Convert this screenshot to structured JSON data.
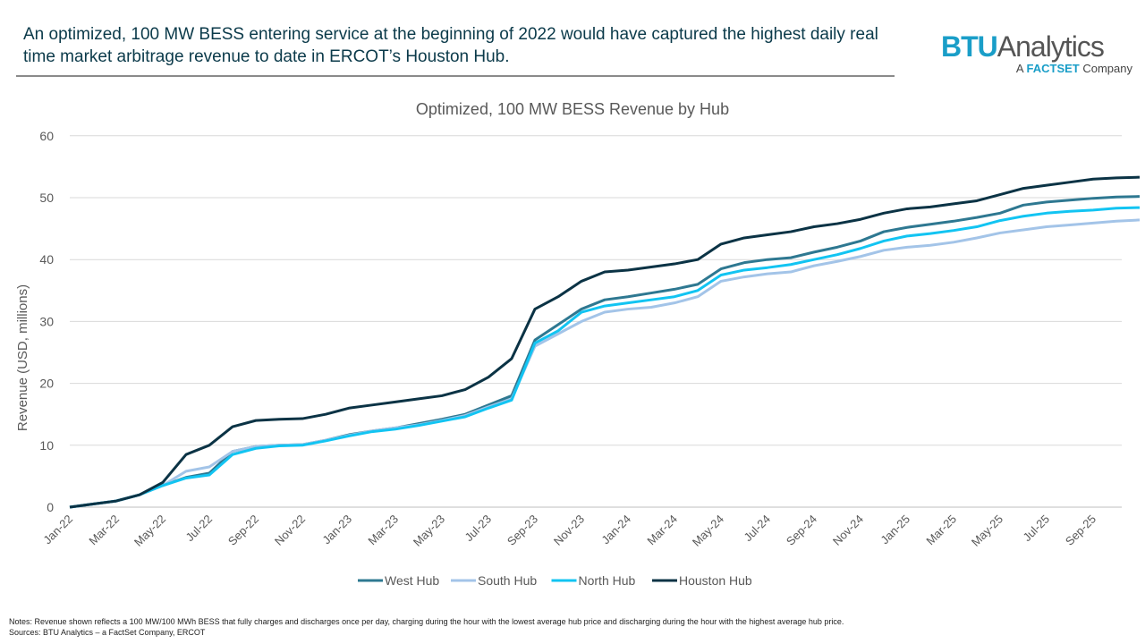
{
  "headline": "An optimized, 100 MW BESS entering service at the beginning of 2022 would have captured the highest daily real time market arbitrage revenue to date in ERCOT’s Houston Hub.",
  "logo": {
    "brand": "BTU",
    "name": "Analytics",
    "prefix": "A",
    "factset": "FACTSET",
    "suffix": "Company"
  },
  "notes": "Notes: Revenue shown reflects a 100 MW/100 MWh BESS that fully charges and discharges once per day, charging during the hour with the lowest average hub price and discharging during the hour with the highest average hub price.",
  "sources": "Sources: BTU Analytics – a FactSet Company, ERCOT",
  "chart_data": {
    "type": "line",
    "title": "Optimized, 100 MW BESS Revenue by Hub",
    "xlabel": "",
    "ylabel": "Revenue (USD, millions)",
    "ylim": [
      0,
      60
    ],
    "yticks": [
      0,
      10,
      20,
      30,
      40,
      50,
      60
    ],
    "xticks": [
      "Jan-22",
      "Mar-22",
      "May-22",
      "Jul-22",
      "Sep-22",
      "Nov-22",
      "Jan-23",
      "Mar-23",
      "May-23",
      "Jul-23",
      "Sep-23",
      "Nov-23",
      "Jan-24",
      "Mar-24",
      "May-24",
      "Jul-24",
      "Sep-24",
      "Nov-24",
      "Jan-25",
      "Mar-25",
      "May-25",
      "Jul-25",
      "Sep-25"
    ],
    "x_unit": "months since Jan-22",
    "x": [
      0,
      1,
      2,
      3,
      4,
      5,
      6,
      7,
      8,
      9,
      10,
      11,
      12,
      13,
      14,
      15,
      16,
      17,
      18,
      19,
      20,
      21,
      22,
      23,
      24,
      25,
      26,
      27,
      28,
      29,
      30,
      31,
      32,
      33,
      34,
      35,
      36,
      37,
      38,
      39,
      40,
      41,
      42,
      43,
      44,
      45,
      46
    ],
    "legend": "bottom",
    "grid": true,
    "series": [
      {
        "name": "West Hub",
        "color": "#2e7891",
        "values": [
          0,
          0.5,
          1,
          2,
          3.5,
          4.8,
          5.5,
          9,
          9.8,
          10,
          10.1,
          10.8,
          11.7,
          12.3,
          12.8,
          13.5,
          14.2,
          15,
          16.5,
          18,
          27,
          29.5,
          32,
          33.5,
          34,
          34.6,
          35.2,
          36,
          38.5,
          39.5,
          40,
          40.3,
          41.2,
          42,
          43,
          44.5,
          45.2,
          45.7,
          46.2,
          46.8,
          47.5,
          48.8,
          49.3,
          49.6,
          49.9,
          50.1,
          50.2
        ]
      },
      {
        "name": "South Hub",
        "color": "#a3c4e8",
        "values": [
          0,
          0.5,
          1,
          2,
          3.5,
          5.8,
          6.5,
          9,
          9.8,
          10,
          10.1,
          10.8,
          11.6,
          12.3,
          12.8,
          13.3,
          14,
          14.8,
          16.2,
          17.5,
          26,
          28,
          30,
          31.5,
          32,
          32.3,
          33,
          34,
          36.5,
          37.2,
          37.7,
          38,
          39,
          39.7,
          40.5,
          41.5,
          42,
          42.3,
          42.8,
          43.5,
          44.3,
          44.8,
          45.3,
          45.6,
          45.9,
          46.2,
          46.4
        ]
      },
      {
        "name": "North Hub",
        "color": "#12c4f2",
        "values": [
          0,
          0.5,
          1,
          2,
          3.5,
          4.7,
          5.2,
          8.5,
          9.5,
          9.9,
          10,
          10.7,
          11.5,
          12.2,
          12.6,
          13.2,
          13.9,
          14.6,
          16,
          17.3,
          26.5,
          28.5,
          31.5,
          32.5,
          33,
          33.5,
          34,
          35,
          37.5,
          38.3,
          38.7,
          39.2,
          40,
          40.8,
          41.8,
          43,
          43.8,
          44.2,
          44.7,
          45.3,
          46.3,
          47,
          47.5,
          47.8,
          48,
          48.3,
          48.4
        ]
      },
      {
        "name": "Houston Hub",
        "color": "#0b3345",
        "values": [
          0,
          0.5,
          1,
          2,
          4,
          8.5,
          10,
          13,
          14,
          14.2,
          14.3,
          15,
          16,
          16.5,
          17,
          17.5,
          18,
          19,
          21,
          24,
          32,
          34,
          36.5,
          38,
          38.3,
          38.8,
          39.3,
          40,
          42.5,
          43.5,
          44,
          44.5,
          45.3,
          45.8,
          46.5,
          47.5,
          48.2,
          48.5,
          49,
          49.5,
          50.5,
          51.5,
          52,
          52.5,
          53,
          53.2,
          53.3
        ]
      }
    ]
  }
}
